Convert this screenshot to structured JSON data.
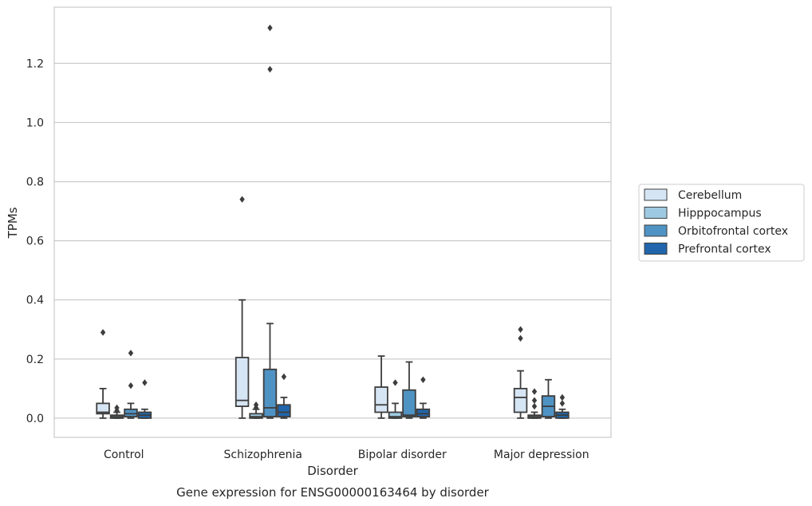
{
  "caption": "Gene expression for ENSG00000163464 by disorder",
  "chart_data": {
    "type": "box",
    "xlabel": "Disorder",
    "ylabel": "TPMs",
    "ylim": [
      -0.065,
      1.39
    ],
    "yticks": [
      0.0,
      0.2,
      0.4,
      0.6,
      0.8,
      1.0,
      1.2
    ],
    "grid": true,
    "legend_position": "right",
    "categories": [
      "Control",
      "Schizophrenia",
      "Bipolar disorder",
      "Major depression"
    ],
    "series": [
      {
        "name": "Cerebellum",
        "color": "#d6e5f4",
        "boxes": [
          {
            "whislo": 0.0,
            "q1": 0.015,
            "med": 0.02,
            "q3": 0.05,
            "whishi": 0.1,
            "fliers": [
              0.29
            ]
          },
          {
            "whislo": 0.0,
            "q1": 0.04,
            "med": 0.06,
            "q3": 0.205,
            "whishi": 0.4,
            "fliers": [
              0.74
            ]
          },
          {
            "whislo": 0.0,
            "q1": 0.02,
            "med": 0.045,
            "q3": 0.105,
            "whishi": 0.21,
            "fliers": []
          },
          {
            "whislo": 0.0,
            "q1": 0.02,
            "med": 0.07,
            "q3": 0.1,
            "whishi": 0.16,
            "fliers": [
              0.27,
              0.3
            ]
          }
        ]
      },
      {
        "name": "Hipppocampus",
        "color": "#9ecae1",
        "boxes": [
          {
            "whislo": 0.0,
            "q1": 0.0,
            "med": 0.005,
            "q3": 0.01,
            "whishi": 0.02,
            "fliers": [
              0.025,
              0.035
            ]
          },
          {
            "whislo": 0.0,
            "q1": 0.0,
            "med": 0.005,
            "q3": 0.015,
            "whishi": 0.03,
            "fliers": [
              0.035,
              0.045
            ]
          },
          {
            "whislo": 0.0,
            "q1": 0.0,
            "med": 0.005,
            "q3": 0.02,
            "whishi": 0.05,
            "fliers": [
              0.12
            ]
          },
          {
            "whislo": 0.0,
            "q1": 0.0,
            "med": 0.005,
            "q3": 0.01,
            "whishi": 0.02,
            "fliers": [
              0.04,
              0.06,
              0.09
            ]
          }
        ]
      },
      {
        "name": "Orbitofrontal cortex",
        "color": "#4f93c4",
        "boxes": [
          {
            "whislo": 0.0,
            "q1": 0.005,
            "med": 0.015,
            "q3": 0.03,
            "whishi": 0.05,
            "fliers": [
              0.11,
              0.22
            ]
          },
          {
            "whislo": 0.0,
            "q1": 0.005,
            "med": 0.035,
            "q3": 0.165,
            "whishi": 0.32,
            "fliers": [
              1.18,
              1.32
            ]
          },
          {
            "whislo": 0.0,
            "q1": 0.005,
            "med": 0.01,
            "q3": 0.095,
            "whishi": 0.19,
            "fliers": []
          },
          {
            "whislo": 0.0,
            "q1": 0.005,
            "med": 0.04,
            "q3": 0.075,
            "whishi": 0.13,
            "fliers": []
          }
        ]
      },
      {
        "name": "Prefrontal cortex",
        "color": "#2166ac",
        "boxes": [
          {
            "whislo": 0.0,
            "q1": 0.0,
            "med": 0.01,
            "q3": 0.02,
            "whishi": 0.03,
            "fliers": [
              0.12
            ]
          },
          {
            "whislo": 0.0,
            "q1": 0.005,
            "med": 0.02,
            "q3": 0.045,
            "whishi": 0.07,
            "fliers": [
              0.14
            ]
          },
          {
            "whislo": 0.0,
            "q1": 0.005,
            "med": 0.015,
            "q3": 0.03,
            "whishi": 0.05,
            "fliers": [
              0.13
            ]
          },
          {
            "whislo": 0.0,
            "q1": 0.0,
            "med": 0.01,
            "q3": 0.02,
            "whishi": 0.03,
            "fliers": [
              0.05,
              0.07
            ]
          }
        ]
      }
    ]
  }
}
